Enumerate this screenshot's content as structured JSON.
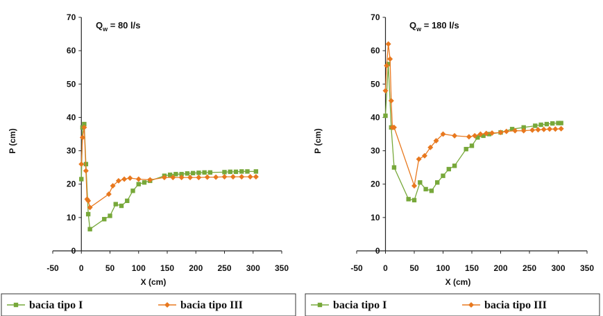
{
  "chart_data": [
    {
      "type": "line",
      "title": "Q",
      "title_subscript": "w",
      "title_value": " = 80 l/s",
      "xlabel": "X (cm)",
      "ylabel": "P (cm)",
      "xlim": [
        -50,
        350
      ],
      "ylim": [
        0,
        70
      ],
      "xticks": [
        "-50",
        "0",
        "50",
        "100",
        "150",
        "200",
        "250",
        "300",
        "350"
      ],
      "yticks": [
        "0",
        "10",
        "20",
        "30",
        "40",
        "50",
        "60",
        "70"
      ],
      "grid": false,
      "legend_position": "bottom",
      "series": [
        {
          "name": "bacia tipo I",
          "color": "#77a83a",
          "marker": "square",
          "x": [
            0,
            2,
            5,
            8,
            12,
            15,
            40,
            50,
            60,
            70,
            80,
            90,
            100,
            110,
            120,
            145,
            155,
            165,
            175,
            185,
            195,
            205,
            215,
            225,
            250,
            260,
            270,
            280,
            290,
            305
          ],
          "y": [
            21.5,
            37,
            38,
            26,
            11,
            6.5,
            9.5,
            10.5,
            14,
            13.5,
            15,
            18,
            20,
            20.5,
            21,
            22.5,
            22.8,
            23,
            23,
            23.2,
            23.3,
            23.4,
            23.5,
            23.5,
            23.6,
            23.7,
            23.7,
            23.8,
            23.8,
            23.8
          ]
        },
        {
          "name": "bacia tipo III",
          "color": "#e8781e",
          "marker": "diamond",
          "x": [
            0,
            2,
            5,
            8,
            10,
            12,
            15,
            48,
            55,
            65,
            75,
            85,
            100,
            120,
            145,
            160,
            175,
            190,
            205,
            220,
            235,
            250,
            265,
            280,
            295,
            305
          ],
          "y": [
            26,
            34,
            37,
            24,
            15.5,
            15,
            13,
            17,
            19.5,
            21,
            21.5,
            21.8,
            21.5,
            21.3,
            22,
            22,
            22,
            22,
            22,
            22.1,
            22.1,
            22.2,
            22.2,
            22.2,
            22.2,
            22.2
          ]
        }
      ]
    },
    {
      "type": "line",
      "title": "Q",
      "title_subscript": "w",
      "title_value": " = 180 l/s",
      "xlabel": "X (cm)",
      "ylabel": "P (cm)",
      "xlim": [
        -50,
        350
      ],
      "ylim": [
        0,
        70
      ],
      "xticks": [
        "-50",
        "0",
        "50",
        "100",
        "150",
        "200",
        "250",
        "300",
        "350"
      ],
      "yticks": [
        "0",
        "10",
        "20",
        "30",
        "40",
        "50",
        "60",
        "70"
      ],
      "grid": false,
      "legend_position": "bottom",
      "series": [
        {
          "name": "bacia tipo I",
          "color": "#77a83a",
          "marker": "square",
          "x": [
            0,
            5,
            10,
            15,
            40,
            50,
            60,
            70,
            80,
            90,
            100,
            110,
            120,
            140,
            150,
            160,
            170,
            180,
            200,
            220,
            240,
            260,
            270,
            280,
            290,
            300,
            305
          ],
          "y": [
            40.5,
            56,
            37,
            25,
            15.5,
            15.2,
            20.5,
            18.5,
            18,
            20.5,
            22.5,
            24.5,
            25.5,
            30.5,
            31.5,
            34,
            34.5,
            35,
            35.5,
            36.5,
            37,
            37.5,
            37.8,
            38,
            38.2,
            38.3,
            38.3
          ]
        },
        {
          "name": "bacia tipo III",
          "color": "#e8781e",
          "marker": "diamond",
          "x": [
            0,
            2,
            5,
            8,
            10,
            12,
            15,
            50,
            58,
            68,
            78,
            88,
            100,
            120,
            145,
            155,
            165,
            175,
            185,
            200,
            210,
            225,
            240,
            255,
            265,
            275,
            285,
            295,
            305
          ],
          "y": [
            48,
            55.5,
            62,
            57.5,
            45,
            37,
            37,
            19.5,
            27.5,
            28.5,
            31,
            33,
            35,
            34.5,
            34.2,
            34.5,
            35,
            35.2,
            35.3,
            35.5,
            35.8,
            36,
            36,
            36.2,
            36.3,
            36.4,
            36.5,
            36.5,
            36.6
          ]
        }
      ]
    }
  ]
}
